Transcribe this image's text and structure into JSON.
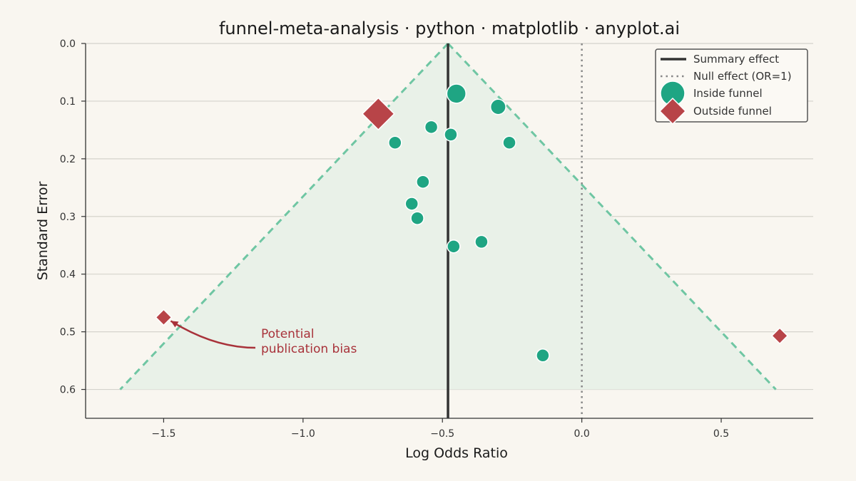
{
  "chart_data": {
    "type": "scatter",
    "title": "funnel-meta-analysis · python · matplotlib · anyplot.ai",
    "xlabel": "Log Odds Ratio",
    "ylabel": "Standard Error",
    "xlim": [
      -1.78,
      0.83
    ],
    "ylim": [
      0.65,
      0.0
    ],
    "y_inverted": true,
    "grid": "horizontal",
    "legend_placement": "top-right",
    "x_ticks": [
      {
        "value": -1.5,
        "label": "−1.5"
      },
      {
        "value": -1.0,
        "label": "−1.0"
      },
      {
        "value": -0.5,
        "label": "−0.5"
      },
      {
        "value": 0.0,
        "label": "0.0"
      },
      {
        "value": 0.5,
        "label": "0.5"
      }
    ],
    "y_ticks": [
      {
        "value": 0.0,
        "label": "0.0"
      },
      {
        "value": 0.1,
        "label": "0.1"
      },
      {
        "value": 0.2,
        "label": "0.2"
      },
      {
        "value": 0.3,
        "label": "0.3"
      },
      {
        "value": 0.4,
        "label": "0.4"
      },
      {
        "value": 0.5,
        "label": "0.5"
      },
      {
        "value": 0.6,
        "label": "0.6"
      }
    ],
    "summary_effect": -0.48,
    "null_effect": 0.0,
    "funnel": {
      "apex_se": 0.0,
      "base_se": 0.6,
      "z": 1.96
    },
    "series": [
      {
        "name": "Inside funnel",
        "color": "#1fa583",
        "marker": "circle",
        "points": [
          {
            "x": -0.45,
            "y": 0.087
          },
          {
            "x": -0.3,
            "y": 0.11
          },
          {
            "x": -0.54,
            "y": 0.145
          },
          {
            "x": -0.47,
            "y": 0.158
          },
          {
            "x": -0.67,
            "y": 0.172
          },
          {
            "x": -0.26,
            "y": 0.172
          },
          {
            "x": -0.57,
            "y": 0.24
          },
          {
            "x": -0.61,
            "y": 0.278
          },
          {
            "x": -0.59,
            "y": 0.303
          },
          {
            "x": -0.46,
            "y": 0.352
          },
          {
            "x": -0.36,
            "y": 0.344
          },
          {
            "x": -0.14,
            "y": 0.541
          }
        ]
      },
      {
        "name": "Outside funnel",
        "color": "#b84448",
        "marker": "diamond",
        "points": [
          {
            "x": -0.73,
            "y": 0.122
          },
          {
            "x": -1.5,
            "y": 0.475
          },
          {
            "x": 0.71,
            "y": 0.507
          }
        ]
      }
    ],
    "legend": [
      {
        "key": "summary",
        "label": "Summary effect",
        "color": "#333333",
        "style": "solid-line"
      },
      {
        "key": "null",
        "label": "Null effect (OR=1)",
        "color": "#888888",
        "style": "dotted-line"
      },
      {
        "key": "inside",
        "label": "Inside funnel",
        "color": "#1fa583",
        "style": "circle"
      },
      {
        "key": "outside",
        "label": "Outside funnel",
        "color": "#b84448",
        "style": "diamond"
      }
    ],
    "annotations": [
      {
        "text": [
          "Potential",
          "publication bias"
        ],
        "color": "#a8323a",
        "points_to": {
          "x": -1.5,
          "y": 0.475
        }
      }
    ],
    "colors": {
      "background": "#f9f6f0",
      "funnel_fill": "#e9f1e8",
      "funnel_edge": "#6fc6a3",
      "grid": "#d5d3cc",
      "axis": "#333333"
    }
  }
}
